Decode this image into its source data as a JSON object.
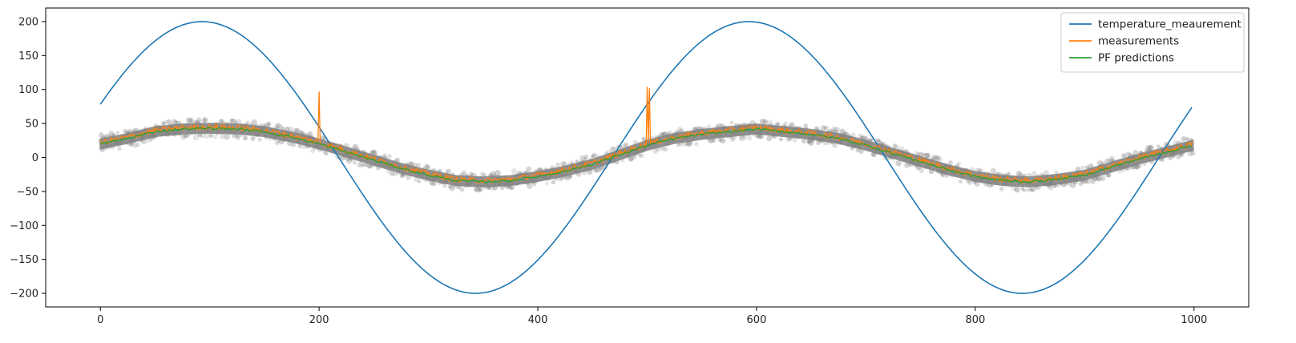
{
  "chart_data": {
    "type": "line",
    "title": "",
    "xlabel": "",
    "ylabel": "",
    "xlim": [
      -50,
      1050
    ],
    "ylim": [
      -220,
      220
    ],
    "xticks": [
      0,
      200,
      400,
      600,
      800,
      1000
    ],
    "yticks": [
      200,
      150,
      100,
      50,
      0,
      -50,
      -100,
      -150,
      -200
    ],
    "grid": false,
    "legend": {
      "position": "top-right",
      "entries": [
        "temperature_meaurement",
        "measurements",
        "PF predictions"
      ]
    },
    "series": [
      {
        "name": "temperature_meaurement",
        "color": "#1f77b4",
        "function": "sine",
        "amplitude": 200,
        "period": 500,
        "peak_x": 93,
        "x_range": [
          0,
          999
        ]
      },
      {
        "name": "measurements",
        "color": "#ff7f0e",
        "x": [
          0,
          25,
          50,
          75,
          100,
          125,
          150,
          175,
          200,
          225,
          250,
          275,
          300,
          325,
          350,
          375,
          400,
          425,
          450,
          475,
          500,
          525,
          550,
          575,
          600,
          625,
          650,
          675,
          700,
          725,
          750,
          775,
          800,
          825,
          850,
          875,
          900,
          925,
          950,
          975,
          999
        ],
        "y": [
          22,
          30,
          40,
          44,
          45,
          44,
          40,
          32,
          22,
          10,
          -2,
          -14,
          -24,
          -32,
          -34,
          -32,
          -26,
          -18,
          -8,
          6,
          20,
          30,
          36,
          40,
          44,
          40,
          36,
          30,
          20,
          8,
          -4,
          -16,
          -26,
          -32,
          -34,
          -30,
          -24,
          -12,
          0,
          10,
          20
        ],
        "spikes": [
          {
            "x": 200,
            "y": 97
          },
          {
            "x": 500,
            "y": 104
          },
          {
            "x": 502,
            "y": 102
          }
        ]
      },
      {
        "name": "PF predictions",
        "color": "#2ca02c",
        "x": [
          0,
          25,
          50,
          75,
          100,
          125,
          150,
          175,
          200,
          225,
          250,
          275,
          300,
          325,
          350,
          375,
          400,
          425,
          450,
          475,
          500,
          525,
          550,
          575,
          600,
          625,
          650,
          675,
          700,
          725,
          750,
          775,
          800,
          825,
          850,
          875,
          900,
          925,
          950,
          975,
          999
        ],
        "y": [
          20,
          28,
          38,
          42,
          43,
          42,
          38,
          30,
          20,
          8,
          -4,
          -16,
          -26,
          -34,
          -36,
          -34,
          -28,
          -20,
          -10,
          4,
          18,
          28,
          34,
          38,
          42,
          38,
          34,
          28,
          18,
          6,
          -6,
          -18,
          -28,
          -34,
          -36,
          -32,
          -26,
          -14,
          -2,
          8,
          18
        ]
      }
    ],
    "particles": {
      "color": "#808080",
      "band_halfwidth": 13
    }
  }
}
